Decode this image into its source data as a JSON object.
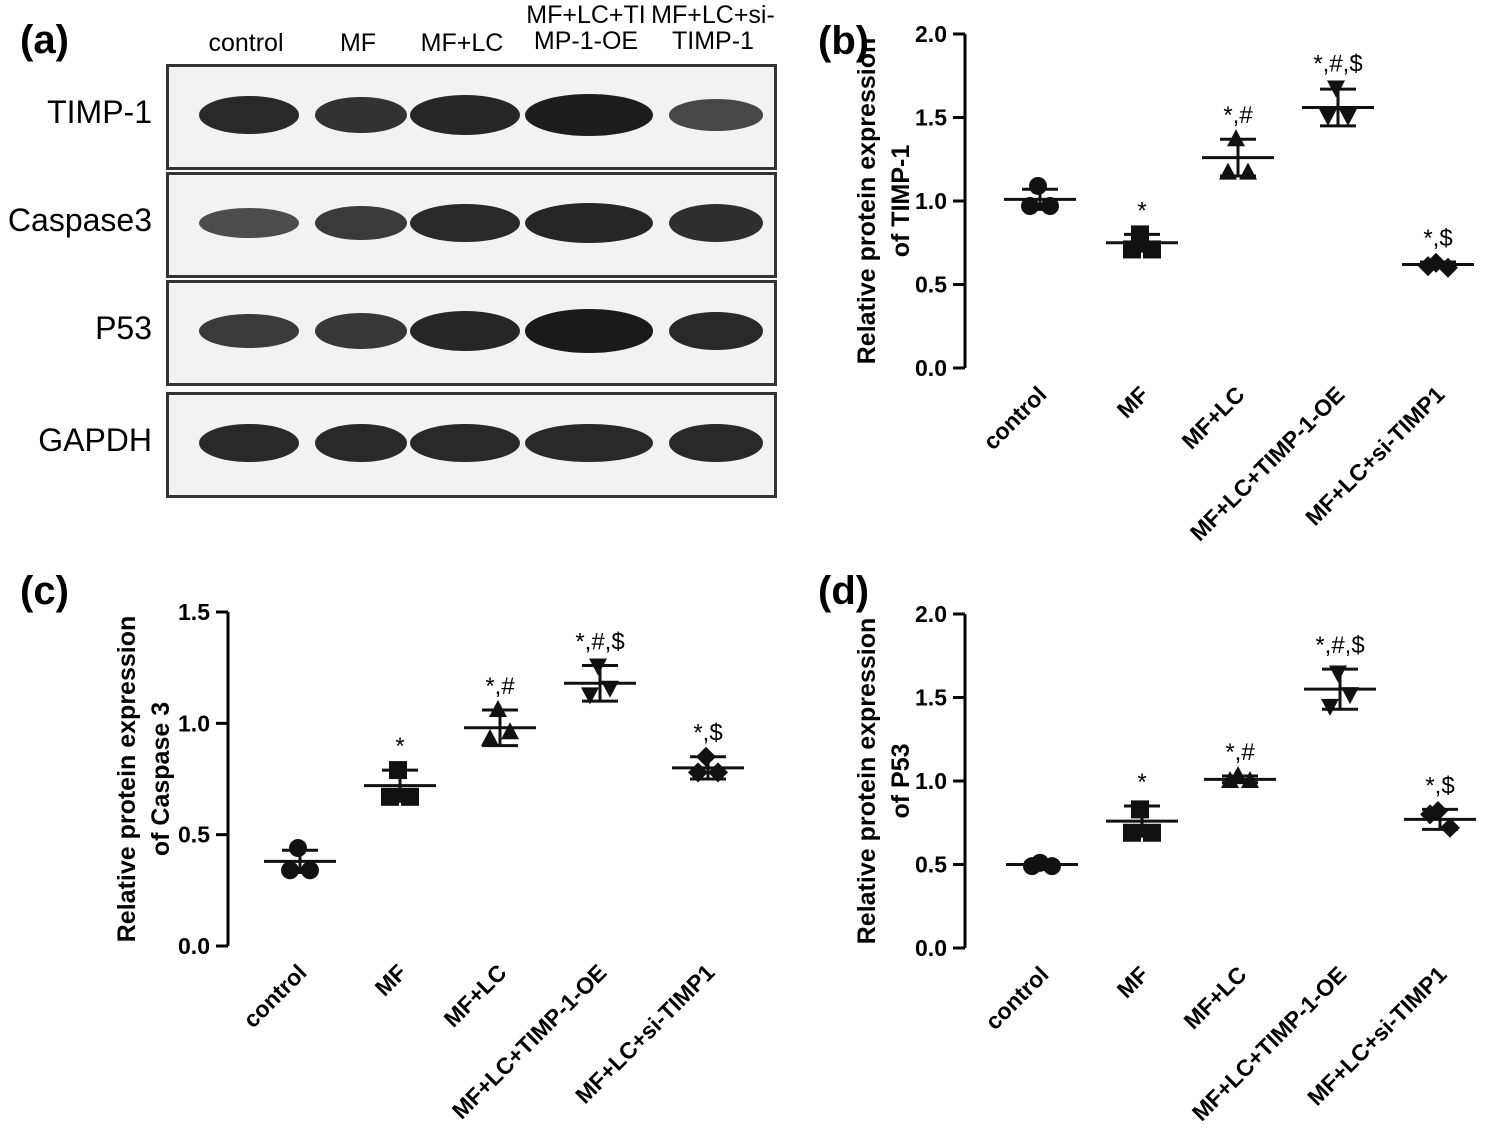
{
  "panel_a": {
    "letter": "(a)",
    "lanes": [
      [
        "control"
      ],
      [
        "MF"
      ],
      [
        "MF+LC"
      ],
      [
        "MF+LC+TI",
        "MP-1-OE"
      ],
      [
        "MF+LC+si-",
        "TIMP-1"
      ]
    ],
    "rows": [
      {
        "label": "TIMP-1",
        "intensity": [
          0.95,
          0.85,
          1.0,
          1.1,
          0.6
        ]
      },
      {
        "label": "Caspase3",
        "intensity": [
          0.55,
          0.75,
          0.95,
          1.0,
          0.9
        ]
      },
      {
        "label": "P53",
        "intensity": [
          0.75,
          0.8,
          1.0,
          1.15,
          0.95
        ]
      },
      {
        "label": "GAPDH",
        "intensity": [
          0.95,
          0.95,
          0.95,
          0.95,
          0.95
        ]
      }
    ]
  },
  "chart_data": [
    {
      "panel": "(b)",
      "type": "scatter",
      "ylabel": "Relative protein expression\nof TIMP-1",
      "ylim": [
        0,
        2.0
      ],
      "yticks": [
        "0.0",
        "0.5",
        "1.0",
        "1.5",
        "2.0"
      ],
      "categories": [
        "control",
        "MF",
        "MF+LC",
        "MF+LC+TIMP-1-OE",
        "MF+LC+si-TIMP1"
      ],
      "markers": [
        "circle",
        "square",
        "triangle-up",
        "triangle-down",
        "diamond"
      ],
      "means": [
        1.01,
        0.75,
        1.26,
        1.56,
        0.62
      ],
      "sd": [
        0.06,
        0.05,
        0.11,
        0.11,
        0.015
      ],
      "points": [
        [
          1.09,
          0.97,
          0.97
        ],
        [
          0.8,
          0.71,
          0.71
        ],
        [
          1.37,
          1.17,
          1.17
        ],
        [
          1.68,
          1.51,
          1.51
        ],
        [
          0.63,
          0.61,
          0.6
        ]
      ],
      "annotations": [
        "",
        "*",
        "*,#",
        "*,#,$",
        "*,$"
      ]
    },
    {
      "panel": "(c)",
      "type": "scatter",
      "ylabel": "Relative protein expression\nof Caspase 3",
      "ylim": [
        0,
        1.5
      ],
      "yticks": [
        "0.0",
        "0.5",
        "1.0",
        "1.5"
      ],
      "categories": [
        "control",
        "MF",
        "MF+LC",
        "MF+LC+TIMP-1-OE",
        "MF+LC+si-TIMP1"
      ],
      "markers": [
        "circle",
        "square",
        "triangle-up",
        "triangle-down",
        "diamond"
      ],
      "means": [
        0.38,
        0.72,
        0.98,
        1.18,
        0.8
      ],
      "sd": [
        0.05,
        0.07,
        0.08,
        0.08,
        0.05
      ],
      "points": [
        [
          0.44,
          0.34,
          0.34
        ],
        [
          0.79,
          0.67,
          0.67
        ],
        [
          1.06,
          0.93,
          0.96
        ],
        [
          1.26,
          1.13,
          1.16
        ],
        [
          0.85,
          0.78,
          0.78
        ]
      ],
      "annotations": [
        "",
        "*",
        "*,#",
        "*,#,$",
        "*,$"
      ]
    },
    {
      "panel": "(d)",
      "type": "scatter",
      "ylabel": "Relative protein expression\nof P53",
      "ylim": [
        0,
        2.0
      ],
      "yticks": [
        "0.0",
        "0.5",
        "1.0",
        "1.5",
        "2.0"
      ],
      "categories": [
        "control",
        "MF",
        "MF+LC",
        "MF+LC+TIMP-1-OE",
        "MF+LC+si-TIMP1"
      ],
      "markers": [
        "circle",
        "square",
        "triangle-up",
        "triangle-down",
        "diamond"
      ],
      "means": [
        0.5,
        0.76,
        1.01,
        1.55,
        0.77
      ],
      "sd": [
        0.01,
        0.09,
        0.02,
        0.12,
        0.06
      ],
      "points": [
        [
          0.51,
          0.49,
          0.49
        ],
        [
          0.83,
          0.69,
          0.69
        ],
        [
          1.03,
          1.0,
          1.0
        ],
        [
          1.65,
          1.45,
          1.52
        ],
        [
          0.82,
          0.8,
          0.72
        ]
      ],
      "annotations": [
        "",
        "*",
        "*,#",
        "*,#,$",
        "*,$"
      ]
    }
  ]
}
